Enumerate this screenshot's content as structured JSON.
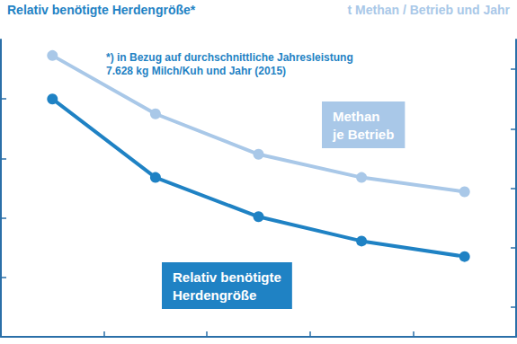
{
  "chart_data": {
    "type": "line",
    "y_label": "Relativ benötigte Herdengröße*",
    "y2_label": "t Methan / Betrieb und Jahr",
    "annotations": [
      "*) in Bezug auf durchschnittliche Jahresleistung\n7.628 kg Milch/Kuh und Jahr (2015)"
    ],
    "categories": [
      null,
      null,
      null,
      null,
      null
    ],
    "series": [
      {
        "name": "Methan\nje Betrieb",
        "color": "#a9c8e8",
        "axis": "y2",
        "values": [
          5.23,
          4.25,
          3.57,
          3.18,
          2.94
        ]
      },
      {
        "name": "Relativ benötigte\nHerdengröße",
        "color": "#1f82c4",
        "values": [
          4.0,
          2.68,
          2.02,
          1.61,
          1.35
        ]
      }
    ],
    "ylim": [
      0,
      5
    ],
    "yticks": [
      1,
      2,
      3,
      4
    ],
    "y2lim": [
      0.5,
      5.5
    ],
    "y2ticks": [
      1,
      2,
      3,
      4,
      5
    ],
    "grid": false,
    "tick_labels": false,
    "marker": "circle",
    "legend": "none"
  }
}
